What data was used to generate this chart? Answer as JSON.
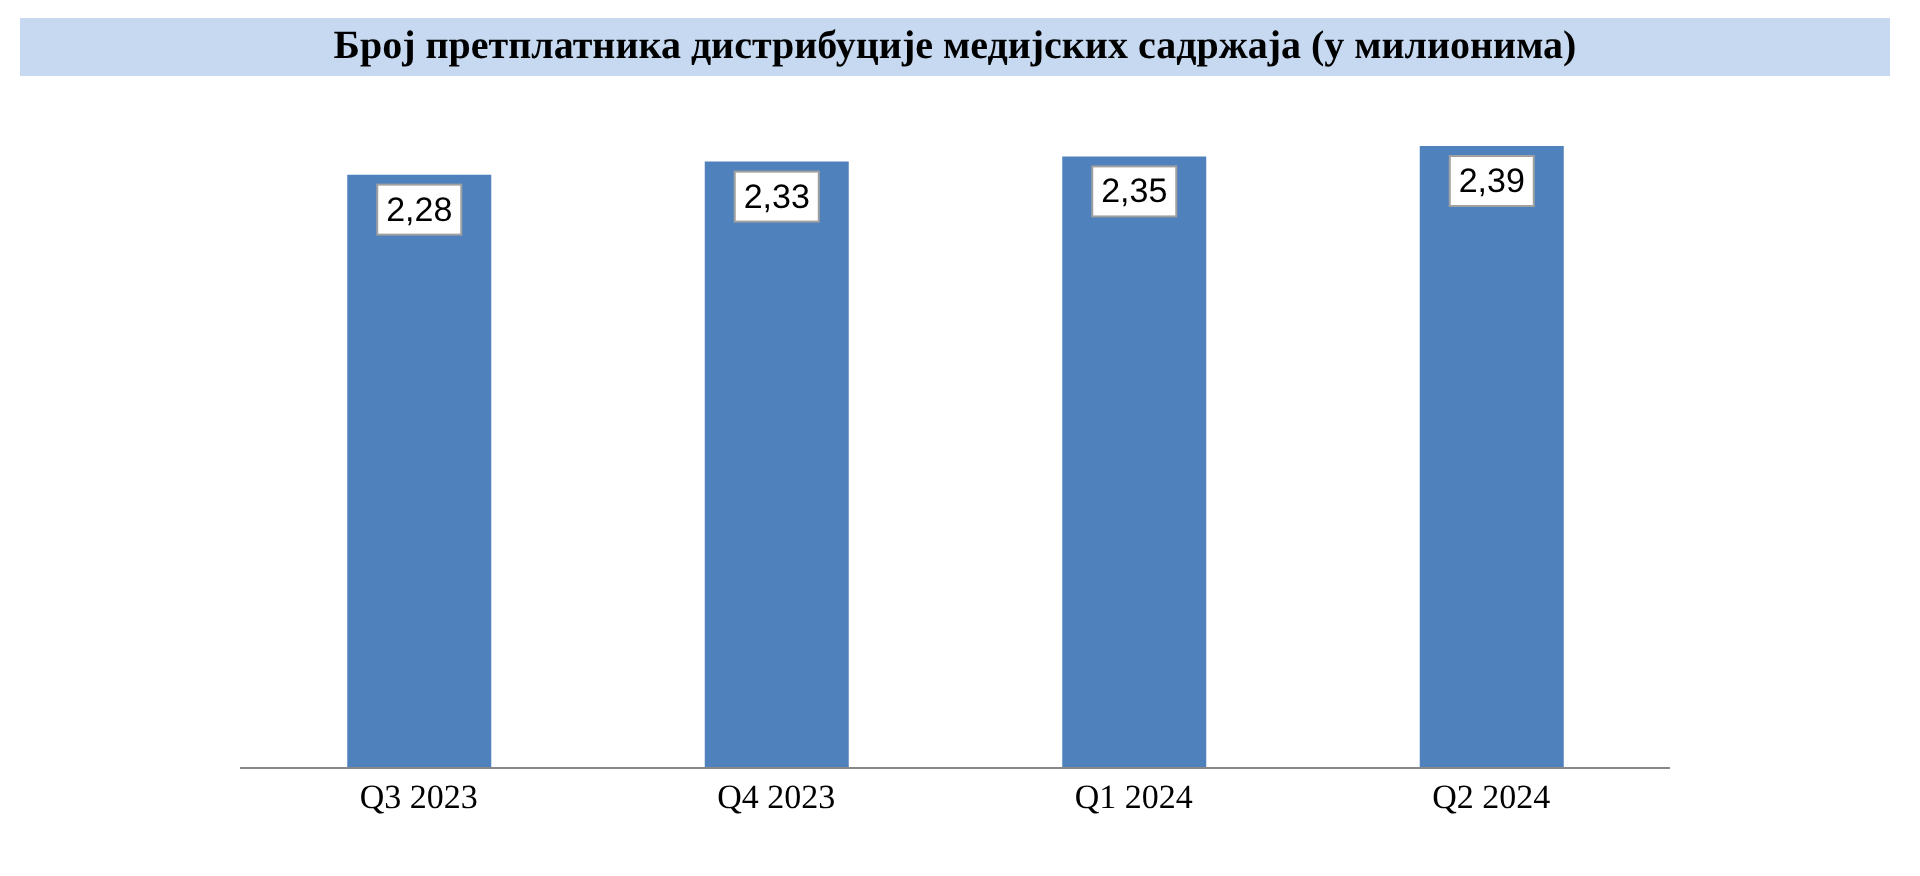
{
  "chart_data": {
    "type": "bar",
    "title": "Број претплатника дистрибуције медијских садржаја (у милионима)",
    "categories": [
      "Q3 2023",
      "Q4 2023",
      "Q1 2024",
      "Q2 2024"
    ],
    "values": [
      2.28,
      2.33,
      2.35,
      2.39
    ],
    "value_labels": [
      "2,28",
      "2,33",
      "2,35",
      "2,39"
    ],
    "color": "#4f81bd",
    "grid": false,
    "legend": false
  }
}
